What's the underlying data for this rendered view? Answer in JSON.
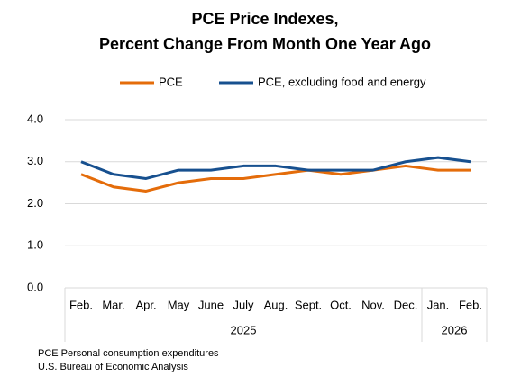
{
  "chart_data": {
    "type": "line",
    "title": [
      "PCE Price Indexes,",
      "Percent Change From Month One Year Ago"
    ],
    "categories": [
      "Feb.",
      "Mar.",
      "Apr.",
      "May",
      "June",
      "July",
      "Aug.",
      "Sept.",
      "Oct.",
      "Nov.",
      "Dec.",
      "Jan.",
      "Feb."
    ],
    "x_groups": [
      {
        "label": "2025",
        "size": 11
      },
      {
        "label": "2026",
        "size": 2
      }
    ],
    "series": [
      {
        "name": "PCE",
        "color": "#e46c0a",
        "values": [
          2.7,
          2.4,
          2.3,
          2.5,
          2.6,
          2.6,
          2.7,
          2.8,
          2.7,
          2.8,
          2.9,
          2.8,
          2.8
        ]
      },
      {
        "name": "PCE, excluding food and energy",
        "color": "#17508f",
        "values": [
          3.0,
          2.7,
          2.6,
          2.8,
          2.8,
          2.9,
          2.9,
          2.8,
          2.8,
          2.8,
          3.0,
          3.1,
          3.0
        ]
      }
    ],
    "ylim": [
      0,
      4
    ],
    "yticks": [
      {
        "value": 0,
        "label": "0.0"
      },
      {
        "value": 1,
        "label": "1.0"
      },
      {
        "value": 2,
        "label": "2.0"
      },
      {
        "value": 3,
        "label": "3.0"
      },
      {
        "value": 4,
        "label": "4.0"
      }
    ],
    "grid": true,
    "legend": "top",
    "notes": [
      "PCE Personal consumption expenditures",
      "U.S. Bureau of Economic Analysis"
    ]
  }
}
